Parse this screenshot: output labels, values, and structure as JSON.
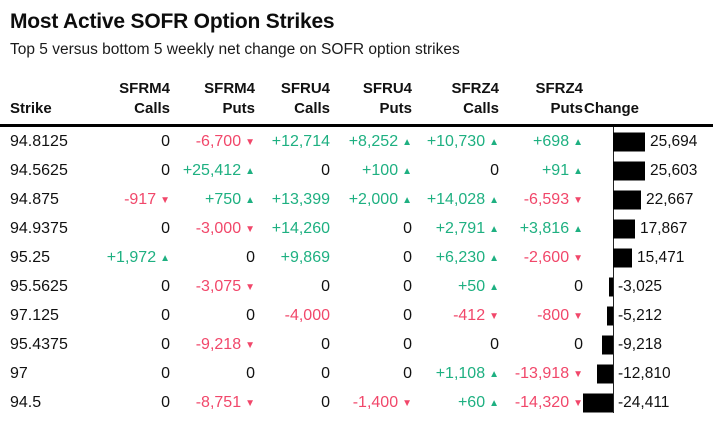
{
  "header": {
    "title": "Most Active SOFR Option Strikes",
    "subtitle": "Top 5 versus bottom 5 weekly net change on SOFR option strikes"
  },
  "colors": {
    "positive": "#1eb081",
    "negative": "#f1476a",
    "bar": "#000000",
    "text": "#111111"
  },
  "icons": {
    "up_arrow": "▲",
    "down_arrow": "▼"
  },
  "table": {
    "columns": [
      {
        "id": "strike",
        "top": "",
        "bottom": "Strike"
      },
      {
        "id": "sfrm4-calls",
        "top": "SFRM4",
        "bottom": "Calls"
      },
      {
        "id": "sfrm4-puts",
        "top": "SFRM4",
        "bottom": "Puts"
      },
      {
        "id": "sfru4-calls",
        "top": "SFRU4",
        "bottom": "Calls"
      },
      {
        "id": "sfru4-puts",
        "top": "SFRU4",
        "bottom": "Puts"
      },
      {
        "id": "sfrz4-calls",
        "top": "SFRZ4",
        "bottom": "Calls"
      },
      {
        "id": "sfrz4-puts",
        "top": "SFRZ4",
        "bottom": "Puts"
      },
      {
        "id": "change",
        "top": "",
        "bottom": "Change"
      }
    ],
    "rows": [
      {
        "strike": "94.8125",
        "cells": [
          {
            "text": "0",
            "arrow": ""
          },
          {
            "text": "-6,700",
            "arrow": "down"
          },
          {
            "text": "+12,714",
            "arrow": ""
          },
          {
            "text": "+8,252",
            "arrow": "up"
          },
          {
            "text": "+10,730",
            "arrow": "up"
          },
          {
            "text": "+698",
            "arrow": "up"
          }
        ],
        "change": {
          "text": "25,694",
          "value": 25694
        }
      },
      {
        "strike": "94.5625",
        "cells": [
          {
            "text": "0",
            "arrow": ""
          },
          {
            "text": "+25,412",
            "arrow": "up"
          },
          {
            "text": "0",
            "arrow": ""
          },
          {
            "text": "+100",
            "arrow": "up"
          },
          {
            "text": "0",
            "arrow": ""
          },
          {
            "text": "+91",
            "arrow": "up"
          }
        ],
        "change": {
          "text": "25,603",
          "value": 25603
        }
      },
      {
        "strike": "94.875",
        "cells": [
          {
            "text": "-917",
            "arrow": "down"
          },
          {
            "text": "+750",
            "arrow": "up"
          },
          {
            "text": "+13,399",
            "arrow": ""
          },
          {
            "text": "+2,000",
            "arrow": "up"
          },
          {
            "text": "+14,028",
            "arrow": "up"
          },
          {
            "text": "-6,593",
            "arrow": "down"
          }
        ],
        "change": {
          "text": "22,667",
          "value": 22667
        }
      },
      {
        "strike": "94.9375",
        "cells": [
          {
            "text": "0",
            "arrow": ""
          },
          {
            "text": "-3,000",
            "arrow": "down"
          },
          {
            "text": "+14,260",
            "arrow": ""
          },
          {
            "text": "0",
            "arrow": ""
          },
          {
            "text": "+2,791",
            "arrow": "up"
          },
          {
            "text": "+3,816",
            "arrow": "up"
          }
        ],
        "change": {
          "text": "17,867",
          "value": 17867
        }
      },
      {
        "strike": "95.25",
        "cells": [
          {
            "text": "+1,972",
            "arrow": "up"
          },
          {
            "text": "0",
            "arrow": ""
          },
          {
            "text": "+9,869",
            "arrow": ""
          },
          {
            "text": "0",
            "arrow": ""
          },
          {
            "text": "+6,230",
            "arrow": "up"
          },
          {
            "text": "-2,600",
            "arrow": "down"
          }
        ],
        "change": {
          "text": "15,471",
          "value": 15471
        }
      },
      {
        "strike": "95.5625",
        "cells": [
          {
            "text": "0",
            "arrow": ""
          },
          {
            "text": "-3,075",
            "arrow": "down"
          },
          {
            "text": "0",
            "arrow": ""
          },
          {
            "text": "0",
            "arrow": ""
          },
          {
            "text": "+50",
            "arrow": "up"
          },
          {
            "text": "0",
            "arrow": ""
          }
        ],
        "change": {
          "text": "-3,025",
          "value": -3025
        }
      },
      {
        "strike": "97.125",
        "cells": [
          {
            "text": "0",
            "arrow": ""
          },
          {
            "text": "0",
            "arrow": ""
          },
          {
            "text": "-4,000",
            "arrow": ""
          },
          {
            "text": "0",
            "arrow": ""
          },
          {
            "text": "-412",
            "arrow": "down"
          },
          {
            "text": "-800",
            "arrow": "down"
          }
        ],
        "change": {
          "text": "-5,212",
          "value": -5212
        }
      },
      {
        "strike": "95.4375",
        "cells": [
          {
            "text": "0",
            "arrow": ""
          },
          {
            "text": "-9,218",
            "arrow": "down"
          },
          {
            "text": "0",
            "arrow": ""
          },
          {
            "text": "0",
            "arrow": ""
          },
          {
            "text": "0",
            "arrow": ""
          },
          {
            "text": "0",
            "arrow": ""
          }
        ],
        "change": {
          "text": "-9,218",
          "value": -9218
        }
      },
      {
        "strike": "97",
        "cells": [
          {
            "text": "0",
            "arrow": ""
          },
          {
            "text": "0",
            "arrow": ""
          },
          {
            "text": "0",
            "arrow": ""
          },
          {
            "text": "0",
            "arrow": ""
          },
          {
            "text": "+1,108",
            "arrow": "up"
          },
          {
            "text": "-13,918",
            "arrow": "down"
          }
        ],
        "change": {
          "text": "-12,810",
          "value": -12810
        }
      },
      {
        "strike": "94.5",
        "cells": [
          {
            "text": "0",
            "arrow": ""
          },
          {
            "text": "-8,751",
            "arrow": "down"
          },
          {
            "text": "0",
            "arrow": ""
          },
          {
            "text": "-1,400",
            "arrow": "down"
          },
          {
            "text": "+60",
            "arrow": "up"
          },
          {
            "text": "-14,320",
            "arrow": "down"
          }
        ],
        "change": {
          "text": "-24,411",
          "value": -24411
        }
      }
    ]
  },
  "chart_data": {
    "type": "table",
    "title": "Most Active SOFR Option Strikes",
    "subtitle": "Top 5 versus bottom 5 weekly net change on SOFR option strikes",
    "columns": [
      "Strike",
      "SFRM4 Calls",
      "SFRM4 Puts",
      "SFRU4 Calls",
      "SFRU4 Puts",
      "SFRZ4 Calls",
      "SFRZ4 Puts",
      "Change"
    ],
    "rows": [
      [
        "94.8125",
        0,
        -6700,
        12714,
        8252,
        10730,
        698,
        25694
      ],
      [
        "94.5625",
        0,
        25412,
        0,
        100,
        0,
        91,
        25603
      ],
      [
        "94.875",
        -917,
        750,
        13399,
        2000,
        14028,
        -6593,
        22667
      ],
      [
        "94.9375",
        0,
        -3000,
        14260,
        0,
        2791,
        3816,
        17867
      ],
      [
        "95.25",
        1972,
        0,
        9869,
        0,
        6230,
        -2600,
        15471
      ],
      [
        "95.5625",
        0,
        -3075,
        0,
        0,
        50,
        0,
        -3025
      ],
      [
        "97.125",
        0,
        0,
        -4000,
        0,
        -412,
        -800,
        -5212
      ],
      [
        "95.4375",
        0,
        -9218,
        0,
        0,
        0,
        0,
        -9218
      ],
      [
        "97",
        0,
        0,
        0,
        0,
        1108,
        -13918,
        -12810
      ],
      [
        "94.5",
        0,
        -8751,
        0,
        -1400,
        60,
        -14320,
        -24411
      ]
    ],
    "change_bars": {
      "type": "bar",
      "orientation": "horizontal",
      "categories": [
        "94.8125",
        "94.5625",
        "94.875",
        "94.9375",
        "95.25",
        "95.5625",
        "97.125",
        "95.4375",
        "97",
        "94.5"
      ],
      "values": [
        25694,
        25603,
        22667,
        17867,
        15471,
        -3025,
        -5212,
        -9218,
        -12810,
        -24411
      ],
      "baseline": 0,
      "xlim": [
        -26000,
        26000
      ],
      "bar_color": "#000000"
    }
  }
}
